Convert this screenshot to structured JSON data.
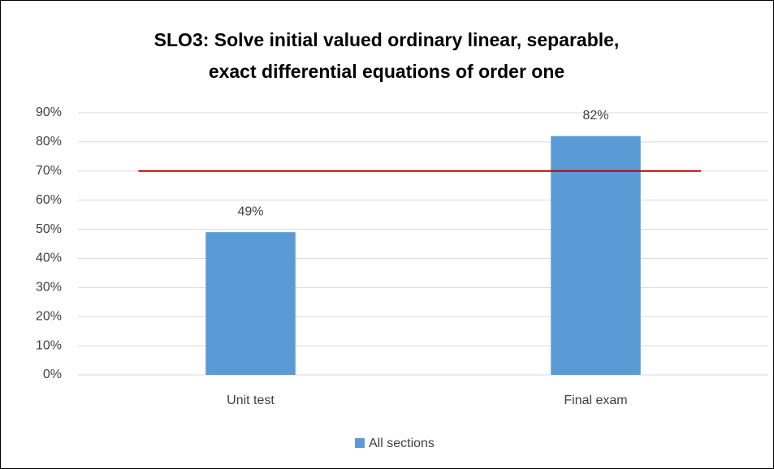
{
  "chart_data": {
    "type": "bar",
    "title": [
      "SLO3: Solve initial valued ordinary linear, separable,",
      "exact differential equations of order one"
    ],
    "categories": [
      "Unit test",
      "Final exam"
    ],
    "series": [
      {
        "name": "All sections",
        "color": "#5b9bd5",
        "values": [
          49,
          82
        ],
        "value_labels": [
          "49%",
          "82%"
        ]
      }
    ],
    "ylim": [
      0,
      90
    ],
    "yticks": [
      {
        "value": 0,
        "label": "0%"
      },
      {
        "value": 10,
        "label": "10%"
      },
      {
        "value": 20,
        "label": "20%"
      },
      {
        "value": 30,
        "label": "30%"
      },
      {
        "value": 40,
        "label": "40%"
      },
      {
        "value": 50,
        "label": "50%"
      },
      {
        "value": 60,
        "label": "60%"
      },
      {
        "value": 70,
        "label": "70%"
      },
      {
        "value": 80,
        "label": "80%"
      },
      {
        "value": 90,
        "label": "90%"
      }
    ],
    "grid": true,
    "reference_line": {
      "value": 70,
      "color": "#c00000"
    },
    "legend": "bottom"
  }
}
